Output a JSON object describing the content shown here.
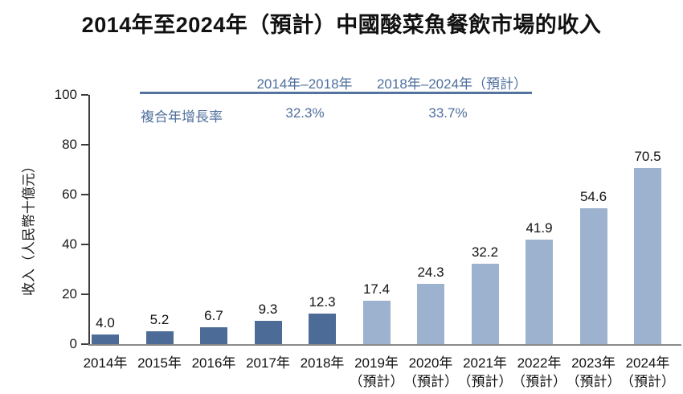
{
  "title": "2014年至2024年（預計）中國酸菜魚餐飲市場的收入",
  "cagr_table": {
    "row_label": "複合年增長率",
    "columns": [
      {
        "period": "2014年–2018年",
        "value": "32.3%"
      },
      {
        "period": "2018年–2024年（預計）",
        "value": "33.7%"
      }
    ]
  },
  "chart_data": {
    "type": "bar",
    "title": "2014年至2024年（預計）中國酸菜魚餐飲市場的收入",
    "xlabel": "",
    "ylabel": "收入（人民幣十億元）",
    "ylim": [
      0,
      100
    ],
    "yticks": [
      0,
      20,
      40,
      60,
      80,
      100
    ],
    "grid": false,
    "legend": "none",
    "annotations": {
      "cagr_2014_2018": "32.3%",
      "cagr_2018_2024": "33.7%"
    },
    "bars": [
      {
        "category": "2014年",
        "note": "",
        "value": 4.0,
        "label": "4.0",
        "group": "actual"
      },
      {
        "category": "2015年",
        "note": "",
        "value": 5.2,
        "label": "5.2",
        "group": "actual"
      },
      {
        "category": "2016年",
        "note": "",
        "value": 6.7,
        "label": "6.7",
        "group": "actual"
      },
      {
        "category": "2017年",
        "note": "",
        "value": 9.3,
        "label": "9.3",
        "group": "actual"
      },
      {
        "category": "2018年",
        "note": "",
        "value": 12.3,
        "label": "12.3",
        "group": "actual"
      },
      {
        "category": "2019年",
        "note": "（預計）",
        "value": 17.4,
        "label": "17.4",
        "group": "forecast"
      },
      {
        "category": "2020年",
        "note": "（預計）",
        "value": 24.3,
        "label": "24.3",
        "group": "forecast"
      },
      {
        "category": "2021年",
        "note": "（預計）",
        "value": 32.2,
        "label": "32.2",
        "group": "forecast"
      },
      {
        "category": "2022年",
        "note": "（預計）",
        "value": 41.9,
        "label": "41.9",
        "group": "forecast"
      },
      {
        "category": "2023年",
        "note": "（預計）",
        "value": 54.6,
        "label": "54.6",
        "group": "forecast"
      },
      {
        "category": "2024年",
        "note": "（預計）",
        "value": 70.5,
        "label": "70.5",
        "group": "forecast"
      }
    ],
    "colors": {
      "actual": "#4c6c97",
      "forecast": "#9db2ce",
      "cagr_text": "#4f6f9c",
      "cagr_rule": "#54749f",
      "axis_dark": "#3d3d3d",
      "axis_baseline": "#8a8a8a"
    }
  }
}
